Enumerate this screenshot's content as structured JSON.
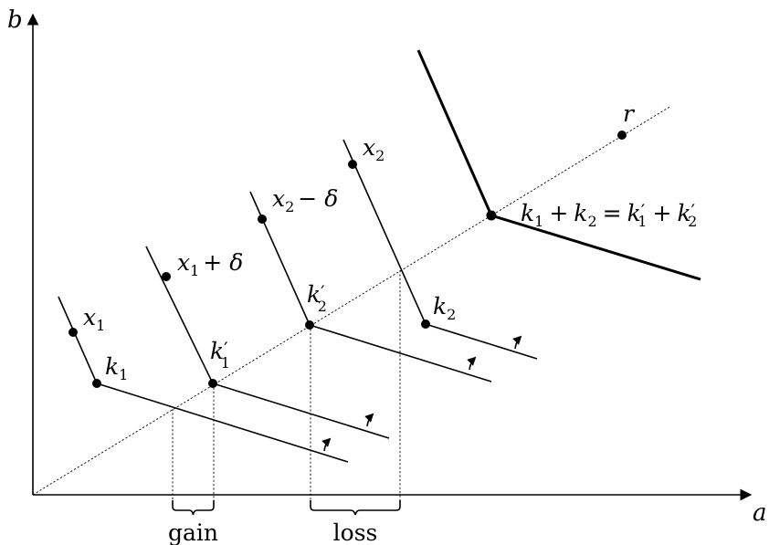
{
  "axes": {
    "x_label": "a",
    "y_label": "b"
  },
  "points": {
    "r": "r",
    "x1": "x",
    "x1_sub": "1",
    "k1": "k",
    "k1_sub": "1",
    "x1_plus_delta": "x",
    "x1_plus_delta_sub": "1",
    "x1_plus_delta_op": "+ δ",
    "k1_prime": "k",
    "k1_prime_sub": "1",
    "k1_prime_mark": "′",
    "x2_minus_delta": "x",
    "x2_minus_delta_sub": "2",
    "x2_minus_delta_op": "− δ",
    "k2_prime": "k",
    "k2_prime_sub": "2",
    "k2_prime_mark": "′",
    "x2": "x",
    "x2_sub": "2",
    "k2": "k",
    "k2_sub": "2"
  },
  "equation": {
    "t1": "k",
    "s1": "1",
    "op1": "+",
    "t2": "k",
    "s2": "2",
    "eq": "=",
    "t3": "k",
    "p3": "′",
    "s3": "1",
    "op2": "+",
    "t4": "k",
    "p4": "′",
    "s4": "2"
  },
  "brackets": {
    "gain": "gain",
    "loss": "loss"
  }
}
